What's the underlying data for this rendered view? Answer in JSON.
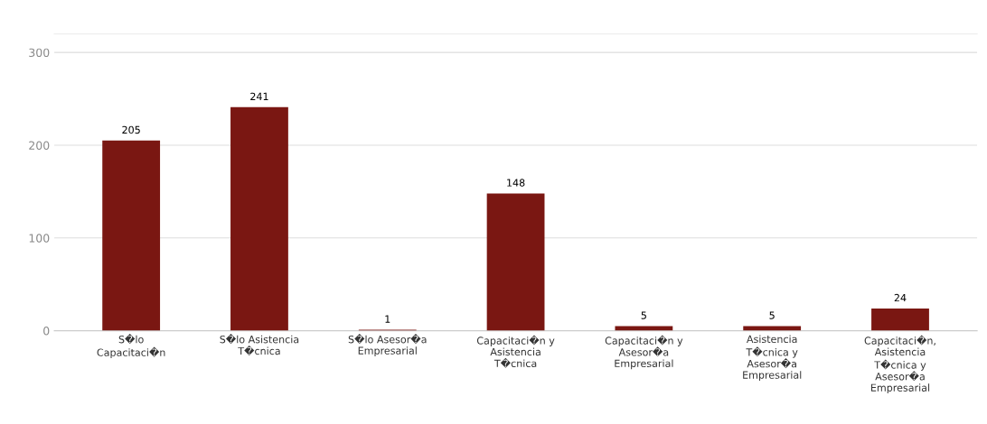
{
  "chart_data": {
    "type": "bar",
    "categories": [
      "S�lo Capacitaci�n",
      "S�lo Asistencia T�cnica",
      "S�lo Asesor�a Empresarial",
      "Capacitaci�n y Asistencia T�cnica",
      "Capacitaci�n y Asesor�a Empresarial",
      "Asistencia T�cnica y Asesor�a Empresarial",
      "Capacitaci�n, Asistencia T�cnica y Asesor�a Empresarial"
    ],
    "values": [
      205,
      241,
      1,
      148,
      5,
      5,
      24
    ],
    "color": "#7a1712",
    "ylim": [
      0,
      320
    ],
    "yticks": [
      0,
      100,
      200,
      300
    ],
    "grid": "y",
    "data_labels": true
  }
}
